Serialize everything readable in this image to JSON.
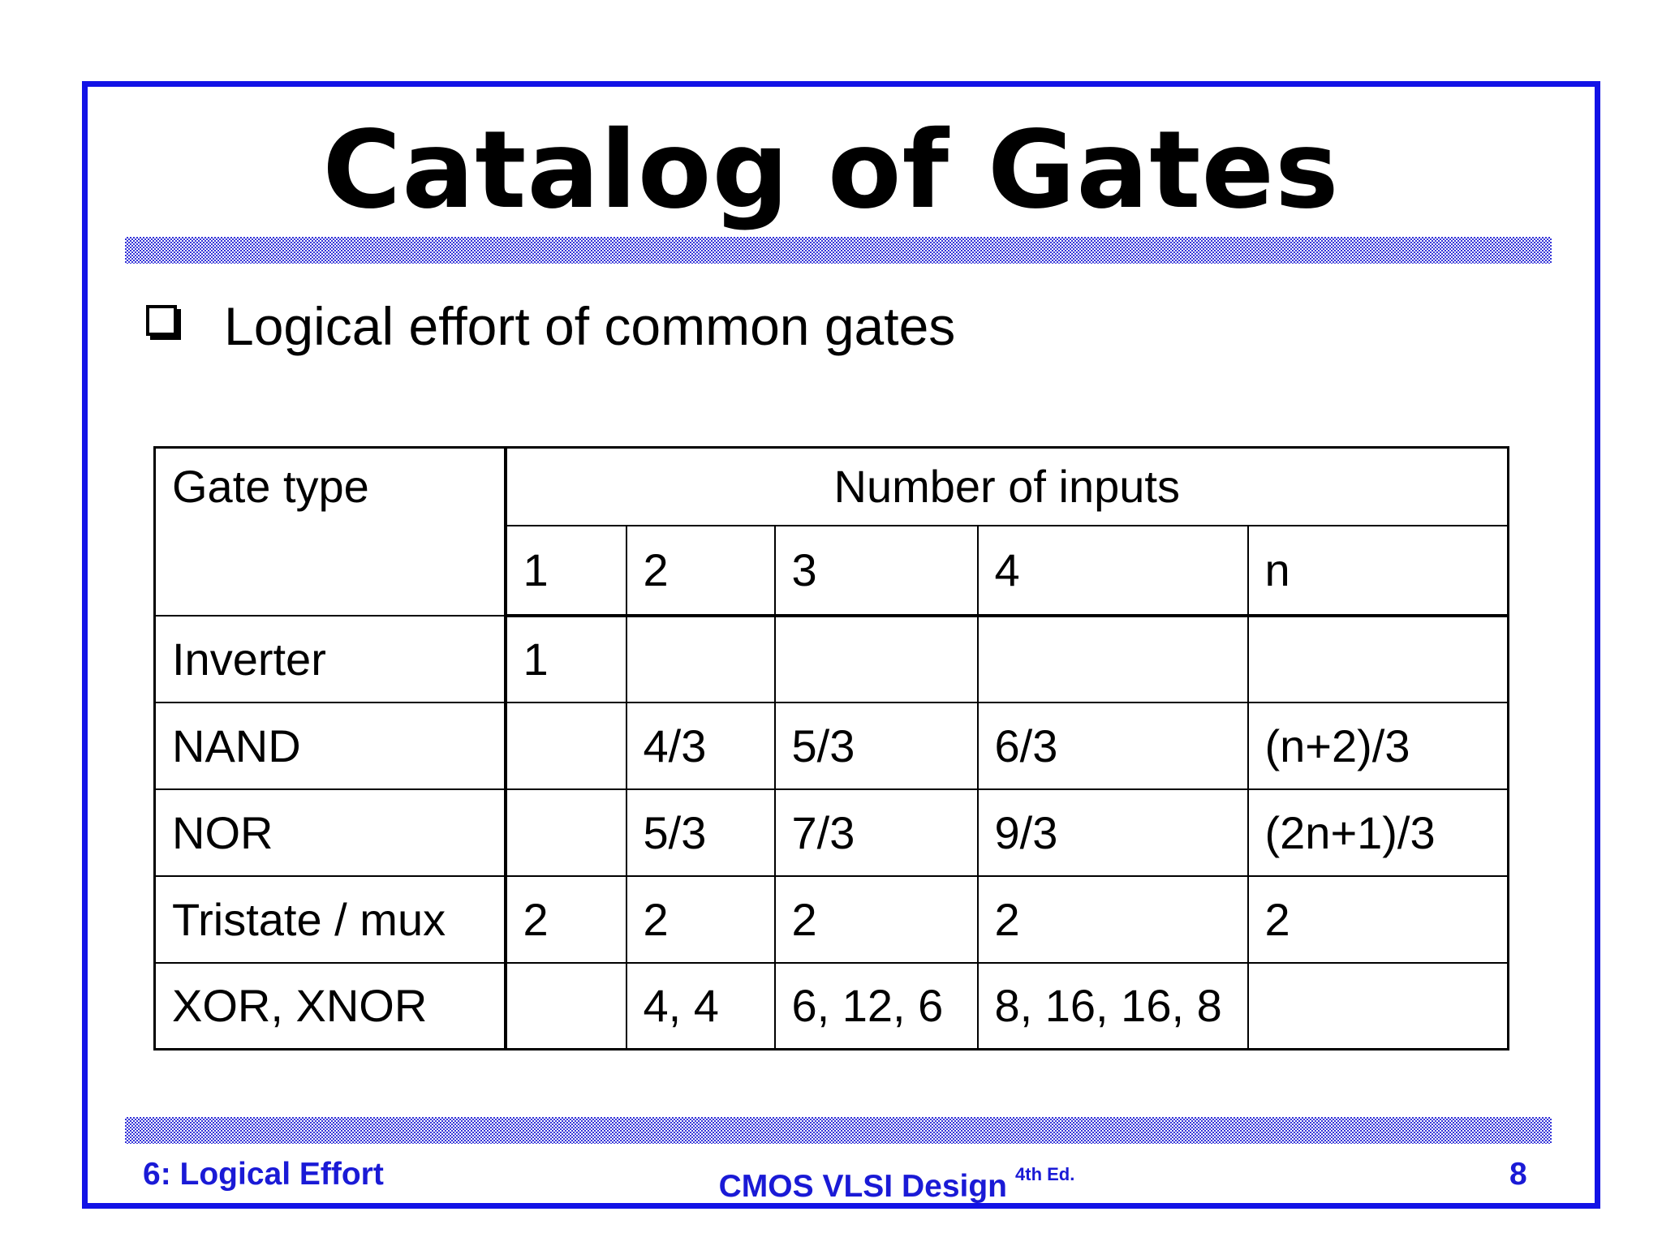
{
  "slide": {
    "title": "Catalog of Gates",
    "bullet": "Logical effort of common gates"
  },
  "table": {
    "corner_header": "Gate type",
    "group_header": "Number of inputs",
    "columns": [
      "1",
      "2",
      "3",
      "4",
      "n"
    ],
    "rows": [
      {
        "gate": "Inverter",
        "cells": [
          "1",
          "",
          "",
          "",
          ""
        ]
      },
      {
        "gate": "NAND",
        "cells": [
          "",
          "4/3",
          "5/3",
          "6/3",
          "(n+2)/3"
        ]
      },
      {
        "gate": "NOR",
        "cells": [
          "",
          "5/3",
          "7/3",
          "9/3",
          "(2n+1)/3"
        ]
      },
      {
        "gate": "Tristate / mux",
        "cells": [
          "2",
          "2",
          "2",
          "2",
          "2"
        ]
      },
      {
        "gate": "XOR, XNOR",
        "cells": [
          "",
          "4, 4",
          "6, 12, 6",
          "8, 16, 16, 8",
          ""
        ]
      }
    ]
  },
  "footer": {
    "left": "6: Logical Effort",
    "center": "CMOS VLSI Design",
    "center_sup": "4th Ed.",
    "right": "8"
  },
  "colors": {
    "frame": "#1212e6",
    "rule_pattern": "#3434d8",
    "footer_text": "#1a1ad6"
  }
}
